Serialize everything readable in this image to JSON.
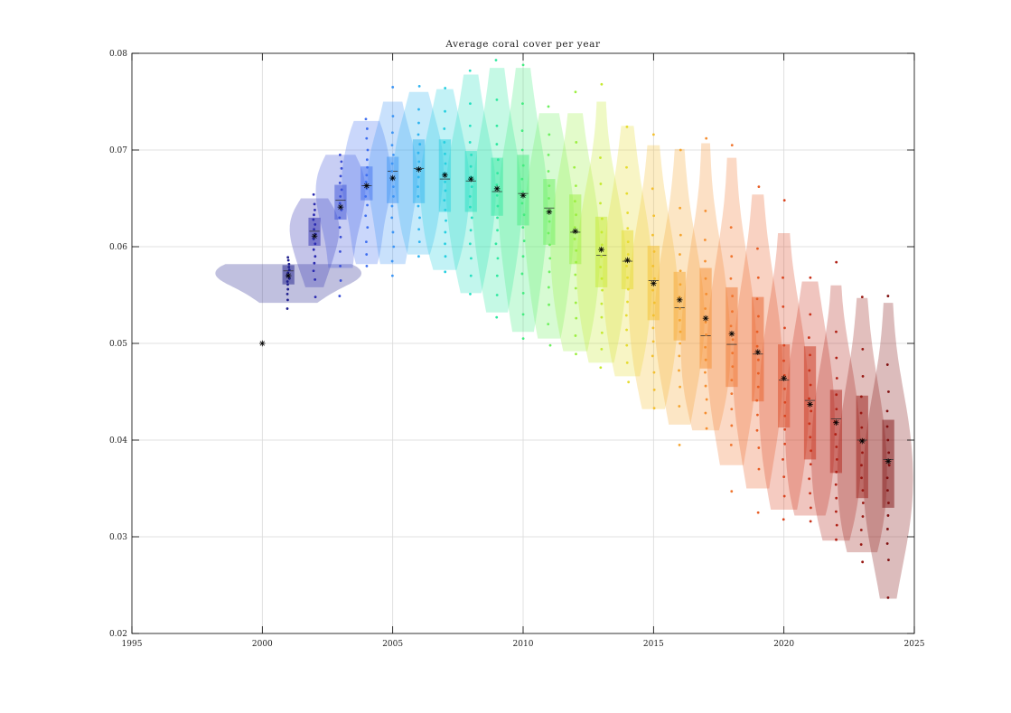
{
  "chart_data": {
    "type": "violin",
    "title": "Average coral cover per year",
    "xlabel": "",
    "ylabel": "",
    "xlim": [
      1995,
      2025
    ],
    "ylim": [
      0.02,
      0.08
    ],
    "x_ticks": [
      1995,
      2000,
      2005,
      2010,
      2015,
      2020,
      2025
    ],
    "x_tick_labels": [
      "1995",
      "2000",
      "2005",
      "2010",
      "2015",
      "2020",
      "2025"
    ],
    "y_ticks": [
      0.02,
      0.03,
      0.04,
      0.05,
      0.06,
      0.07,
      0.08
    ],
    "y_tick_labels": [
      "0.02",
      "0.03",
      "0.04",
      "0.05",
      "0.06",
      "0.07",
      "0.08"
    ],
    "grid": true,
    "colormap": "jet",
    "colors": {
      "start": "#1a1a80",
      "end": "#800000",
      "mean_marker": "#000000",
      "grid": "#d9d9d9",
      "axes": "#000000"
    },
    "initial_value": {
      "x": 2000,
      "y": 0.05
    },
    "years": [
      {
        "year": 2001,
        "color": "#1e1e8c",
        "mean": 0.057,
        "median": 0.0575,
        "q1": 0.0561,
        "q3": 0.0581,
        "min": 0.0536,
        "max": 0.0589,
        "density_min": 0.0542,
        "density_max": 0.0582,
        "points": [
          0.0536,
          0.0545,
          0.0551,
          0.0556,
          0.0561,
          0.0564,
          0.0567,
          0.057,
          0.0573,
          0.0576,
          0.0579,
          0.0582,
          0.0586,
          0.0589
        ]
      },
      {
        "year": 2002,
        "color": "#2a2ab0",
        "mean": 0.0611,
        "median": 0.0616,
        "q1": 0.0601,
        "q3": 0.063,
        "min": 0.0548,
        "max": 0.0654,
        "density_min": 0.0558,
        "density_max": 0.065,
        "points": [
          0.0548,
          0.0566,
          0.0575,
          0.0583,
          0.059,
          0.0597,
          0.0603,
          0.0608,
          0.0613,
          0.0618,
          0.0623,
          0.0628,
          0.0633,
          0.0638,
          0.0644,
          0.0654
        ]
      },
      {
        "year": 2003,
        "color": "#3a4fd6",
        "mean": 0.0641,
        "median": 0.0648,
        "q1": 0.0628,
        "q3": 0.0664,
        "min": 0.0549,
        "max": 0.0695,
        "density_min": 0.0578,
        "density_max": 0.0695,
        "points": [
          0.0549,
          0.0565,
          0.058,
          0.0595,
          0.061,
          0.062,
          0.063,
          0.0638,
          0.0645,
          0.0652,
          0.0659,
          0.0666,
          0.0673,
          0.0681,
          0.0688,
          0.0695
        ]
      },
      {
        "year": 2004,
        "color": "#3f6ff0",
        "mean": 0.0663,
        "median": 0.0663,
        "q1": 0.0648,
        "q3": 0.0683,
        "min": 0.058,
        "max": 0.0732,
        "density_min": 0.0582,
        "density_max": 0.073,
        "points": [
          0.058,
          0.0592,
          0.0605,
          0.062,
          0.0632,
          0.0643,
          0.0652,
          0.066,
          0.0667,
          0.0674,
          0.0682,
          0.069,
          0.07,
          0.0712,
          0.0722,
          0.0732
        ]
      },
      {
        "year": 2005,
        "color": "#3d95f5",
        "mean": 0.0671,
        "median": 0.0678,
        "q1": 0.0645,
        "q3": 0.0693,
        "min": 0.057,
        "max": 0.0765,
        "density_min": 0.0582,
        "density_max": 0.075,
        "points": [
          0.057,
          0.0585,
          0.06,
          0.0615,
          0.063,
          0.0642,
          0.0652,
          0.0662,
          0.067,
          0.0678,
          0.0686,
          0.0695,
          0.0705,
          0.0718,
          0.0735,
          0.0765
        ]
      },
      {
        "year": 2006,
        "color": "#2fb4f0",
        "mean": 0.068,
        "median": 0.0681,
        "q1": 0.0645,
        "q3": 0.0711,
        "min": 0.059,
        "max": 0.0766,
        "density_min": 0.0592,
        "density_max": 0.076,
        "points": [
          0.059,
          0.0605,
          0.0618,
          0.063,
          0.0642,
          0.0652,
          0.0662,
          0.0672,
          0.068,
          0.0688,
          0.0697,
          0.0706,
          0.0716,
          0.0728,
          0.0742,
          0.0766
        ]
      },
      {
        "year": 2007,
        "color": "#25cfe0",
        "mean": 0.0674,
        "median": 0.067,
        "q1": 0.0636,
        "q3": 0.0711,
        "min": 0.0574,
        "max": 0.0764,
        "density_min": 0.0576,
        "density_max": 0.0763,
        "points": [
          0.0574,
          0.059,
          0.0603,
          0.0615,
          0.0627,
          0.0638,
          0.0648,
          0.0658,
          0.0667,
          0.0676,
          0.0686,
          0.0696,
          0.0708,
          0.0722,
          0.074,
          0.0764
        ]
      },
      {
        "year": 2008,
        "color": "#25dfc0",
        "mean": 0.067,
        "median": 0.0668,
        "q1": 0.0636,
        "q3": 0.0699,
        "min": 0.0551,
        "max": 0.0782,
        "density_min": 0.0552,
        "density_max": 0.0778,
        "points": [
          0.0551,
          0.057,
          0.0588,
          0.0603,
          0.0617,
          0.063,
          0.0641,
          0.0652,
          0.0662,
          0.0672,
          0.0683,
          0.0695,
          0.0708,
          0.0725,
          0.0748,
          0.0782
        ]
      },
      {
        "year": 2009,
        "color": "#30e8a0",
        "mean": 0.066,
        "median": 0.0657,
        "q1": 0.0632,
        "q3": 0.0692,
        "min": 0.0527,
        "max": 0.0793,
        "density_min": 0.0532,
        "density_max": 0.0785,
        "points": [
          0.0527,
          0.055,
          0.057,
          0.0588,
          0.0603,
          0.0617,
          0.063,
          0.0642,
          0.0653,
          0.0664,
          0.0676,
          0.069,
          0.0706,
          0.0725,
          0.0752,
          0.0793
        ]
      },
      {
        "year": 2010,
        "color": "#45ec80",
        "mean": 0.0653,
        "median": 0.0655,
        "q1": 0.0622,
        "q3": 0.0695,
        "min": 0.0505,
        "max": 0.0788,
        "density_min": 0.0512,
        "density_max": 0.0785,
        "points": [
          0.0505,
          0.053,
          0.0552,
          0.0572,
          0.059,
          0.0606,
          0.062,
          0.0633,
          0.0645,
          0.0657,
          0.067,
          0.0684,
          0.07,
          0.072,
          0.0748,
          0.0788
        ]
      },
      {
        "year": 2011,
        "color": "#6ef060",
        "mean": 0.0636,
        "median": 0.064,
        "q1": 0.0602,
        "q3": 0.067,
        "min": 0.0498,
        "max": 0.0745,
        "density_min": 0.0505,
        "density_max": 0.0738,
        "points": [
          0.0498,
          0.052,
          0.054,
          0.0558,
          0.0574,
          0.0588,
          0.0602,
          0.0614,
          0.0626,
          0.0638,
          0.065,
          0.0663,
          0.0678,
          0.0695,
          0.0716,
          0.0745
        ]
      },
      {
        "year": 2012,
        "color": "#9cef40",
        "mean": 0.0616,
        "median": 0.0615,
        "q1": 0.0582,
        "q3": 0.0654,
        "min": 0.0489,
        "max": 0.076,
        "density_min": 0.0492,
        "density_max": 0.0738,
        "points": [
          0.0489,
          0.0508,
          0.0526,
          0.0542,
          0.0557,
          0.0571,
          0.0584,
          0.0596,
          0.0608,
          0.062,
          0.0633,
          0.0647,
          0.0663,
          0.0682,
          0.0708,
          0.076
        ]
      },
      {
        "year": 2013,
        "color": "#c6ea30",
        "mean": 0.0597,
        "median": 0.0591,
        "q1": 0.0558,
        "q3": 0.0631,
        "min": 0.0475,
        "max": 0.0768,
        "density_min": 0.048,
        "density_max": 0.075,
        "points": [
          0.0475,
          0.0494,
          0.0511,
          0.0527,
          0.0541,
          0.0555,
          0.0567,
          0.0579,
          0.059,
          0.0602,
          0.0615,
          0.0629,
          0.0645,
          0.0665,
          0.0692,
          0.0768
        ]
      },
      {
        "year": 2014,
        "color": "#e6dc30",
        "mean": 0.0586,
        "median": 0.0585,
        "q1": 0.0556,
        "q3": 0.0617,
        "min": 0.046,
        "max": 0.0724,
        "density_min": 0.0466,
        "density_max": 0.0725,
        "points": [
          0.046,
          0.048,
          0.0498,
          0.0514,
          0.0529,
          0.0543,
          0.0556,
          0.0568,
          0.058,
          0.0592,
          0.0605,
          0.0619,
          0.0635,
          0.0655,
          0.0682,
          0.0724
        ]
      },
      {
        "year": 2015,
        "color": "#f3c030",
        "mean": 0.0562,
        "median": 0.0565,
        "q1": 0.0524,
        "q3": 0.0601,
        "min": 0.0433,
        "max": 0.0716,
        "density_min": 0.0432,
        "density_max": 0.0705,
        "points": [
          0.0433,
          0.0452,
          0.047,
          0.0487,
          0.0502,
          0.0516,
          0.0529,
          0.0542,
          0.0555,
          0.0567,
          0.058,
          0.0595,
          0.0612,
          0.0632,
          0.066,
          0.0716
        ]
      },
      {
        "year": 2016,
        "color": "#f5a530",
        "mean": 0.0545,
        "median": 0.0537,
        "q1": 0.0503,
        "q3": 0.0574,
        "min": 0.0395,
        "max": 0.07,
        "density_min": 0.0416,
        "density_max": 0.0701,
        "points": [
          0.0395,
          0.0435,
          0.0455,
          0.0472,
          0.0487,
          0.05,
          0.0512,
          0.0524,
          0.0536,
          0.0548,
          0.0561,
          0.0575,
          0.0592,
          0.0612,
          0.064,
          0.07
        ]
      },
      {
        "year": 2017,
        "color": "#f58e30",
        "mean": 0.0526,
        "median": 0.0508,
        "q1": 0.0474,
        "q3": 0.0578,
        "min": 0.0412,
        "max": 0.0712,
        "density_min": 0.041,
        "density_max": 0.0707,
        "points": [
          0.0412,
          0.0428,
          0.0442,
          0.0456,
          0.047,
          0.0483,
          0.0496,
          0.0509,
          0.0522,
          0.0536,
          0.0551,
          0.0567,
          0.0585,
          0.0607,
          0.0637,
          0.0712
        ]
      },
      {
        "year": 2018,
        "color": "#f07630",
        "mean": 0.051,
        "median": 0.0499,
        "q1": 0.0455,
        "q3": 0.0558,
        "min": 0.0347,
        "max": 0.0705,
        "density_min": 0.0374,
        "density_max": 0.0692,
        "points": [
          0.0347,
          0.0395,
          0.0415,
          0.0432,
          0.0448,
          0.0462,
          0.0476,
          0.049,
          0.0504,
          0.0518,
          0.0533,
          0.0549,
          0.0567,
          0.059,
          0.062,
          0.0705
        ]
      },
      {
        "year": 2019,
        "color": "#e85e25",
        "mean": 0.0491,
        "median": 0.0489,
        "q1": 0.044,
        "q3": 0.0548,
        "min": 0.0325,
        "max": 0.0662,
        "density_min": 0.035,
        "density_max": 0.0654,
        "points": [
          0.0325,
          0.037,
          0.0392,
          0.041,
          0.0426,
          0.0441,
          0.0455,
          0.0469,
          0.0483,
          0.0497,
          0.0512,
          0.0528,
          0.0546,
          0.0568,
          0.0598,
          0.0662
        ]
      },
      {
        "year": 2020,
        "color": "#da4520",
        "mean": 0.0464,
        "median": 0.0462,
        "q1": 0.0413,
        "q3": 0.0499,
        "min": 0.0318,
        "max": 0.0648,
        "density_min": 0.0328,
        "density_max": 0.0614,
        "points": [
          0.0318,
          0.0342,
          0.0362,
          0.038,
          0.0396,
          0.0411,
          0.0425,
          0.0439,
          0.0453,
          0.0467,
          0.0482,
          0.0498,
          0.0516,
          0.0538,
          0.0568,
          0.0648
        ]
      },
      {
        "year": 2021,
        "color": "#c83018",
        "mean": 0.0437,
        "median": 0.0441,
        "q1": 0.038,
        "q3": 0.0497,
        "min": 0.0316,
        "max": 0.0568,
        "density_min": 0.0322,
        "density_max": 0.0564,
        "points": [
          0.0316,
          0.033,
          0.0345,
          0.036,
          0.0375,
          0.0389,
          0.0403,
          0.0417,
          0.043,
          0.0443,
          0.0457,
          0.0472,
          0.0488,
          0.0506,
          0.053,
          0.0568
        ]
      },
      {
        "year": 2022,
        "color": "#b02015",
        "mean": 0.0418,
        "median": 0.0422,
        "q1": 0.0366,
        "q3": 0.0452,
        "min": 0.0297,
        "max": 0.0584,
        "density_min": 0.0296,
        "density_max": 0.056,
        "points": [
          0.0297,
          0.0312,
          0.0326,
          0.034,
          0.0354,
          0.0367,
          0.038,
          0.0393,
          0.0406,
          0.0419,
          0.0432,
          0.0447,
          0.0464,
          0.0485,
          0.0512,
          0.0584
        ]
      },
      {
        "year": 2023,
        "color": "#981812",
        "mean": 0.0399,
        "median": 0.04,
        "q1": 0.034,
        "q3": 0.0446,
        "min": 0.0274,
        "max": 0.0548,
        "density_min": 0.0284,
        "density_max": 0.0547,
        "points": [
          0.0274,
          0.0292,
          0.0307,
          0.0321,
          0.0335,
          0.0348,
          0.0361,
          0.0374,
          0.0387,
          0.04,
          0.0413,
          0.0428,
          0.0445,
          0.0466,
          0.0494,
          0.0548
        ]
      },
      {
        "year": 2024,
        "color": "#801010",
        "mean": 0.0378,
        "median": 0.038,
        "q1": 0.033,
        "q3": 0.0421,
        "min": 0.0237,
        "max": 0.0549,
        "density_min": 0.0236,
        "density_max": 0.0542,
        "points": [
          0.0237,
          0.0276,
          0.0293,
          0.0308,
          0.0322,
          0.0335,
          0.0348,
          0.0361,
          0.0374,
          0.0387,
          0.04,
          0.0414,
          0.043,
          0.045,
          0.0478,
          0.0549
        ]
      }
    ]
  }
}
